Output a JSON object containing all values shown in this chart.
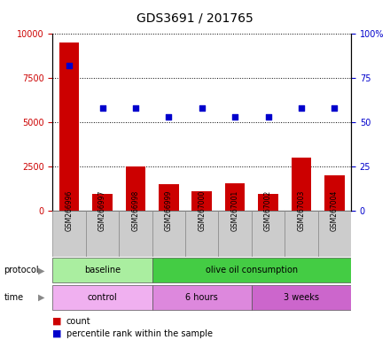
{
  "title": "GDS3691 / 201765",
  "samples": [
    "GSM266996",
    "GSM266997",
    "GSM266998",
    "GSM266999",
    "GSM267000",
    "GSM267001",
    "GSM267002",
    "GSM267003",
    "GSM267004"
  ],
  "counts": [
    9500,
    950,
    2500,
    1500,
    1100,
    1550,
    950,
    3000,
    2000
  ],
  "percentile_ranks": [
    82,
    58,
    58,
    53,
    58,
    53,
    53,
    58,
    58
  ],
  "bar_color": "#cc0000",
  "dot_color": "#0000cc",
  "left_ylim": [
    0,
    10000
  ],
  "left_yticks": [
    0,
    2500,
    5000,
    7500,
    10000
  ],
  "left_yticklabels": [
    "0",
    "2500",
    "5000",
    "7500",
    "10000"
  ],
  "right_ylim": [
    0,
    100
  ],
  "right_yticks": [
    0,
    25,
    50,
    75,
    100
  ],
  "right_yticklabels": [
    "0",
    "25",
    "50",
    "75",
    "100%"
  ],
  "protocol_groups": [
    {
      "label": "baseline",
      "start": 0,
      "end": 2,
      "color": "#aaeea0"
    },
    {
      "label": "olive oil consumption",
      "start": 3,
      "end": 8,
      "color": "#44cc44"
    }
  ],
  "time_groups": [
    {
      "label": "control",
      "start": 0,
      "end": 2,
      "color": "#f0b0f0"
    },
    {
      "label": "6 hours",
      "start": 3,
      "end": 5,
      "color": "#dd88dd"
    },
    {
      "label": "3 weeks",
      "start": 6,
      "end": 8,
      "color": "#cc66cc"
    }
  ],
  "legend_count_color": "#cc0000",
  "legend_percentile_color": "#0000cc",
  "bg_color": "#ffffff",
  "tick_label_area_color": "#cccccc",
  "tick_label_area_edge": "#888888",
  "protocol_label": "protocol",
  "time_label": "time"
}
